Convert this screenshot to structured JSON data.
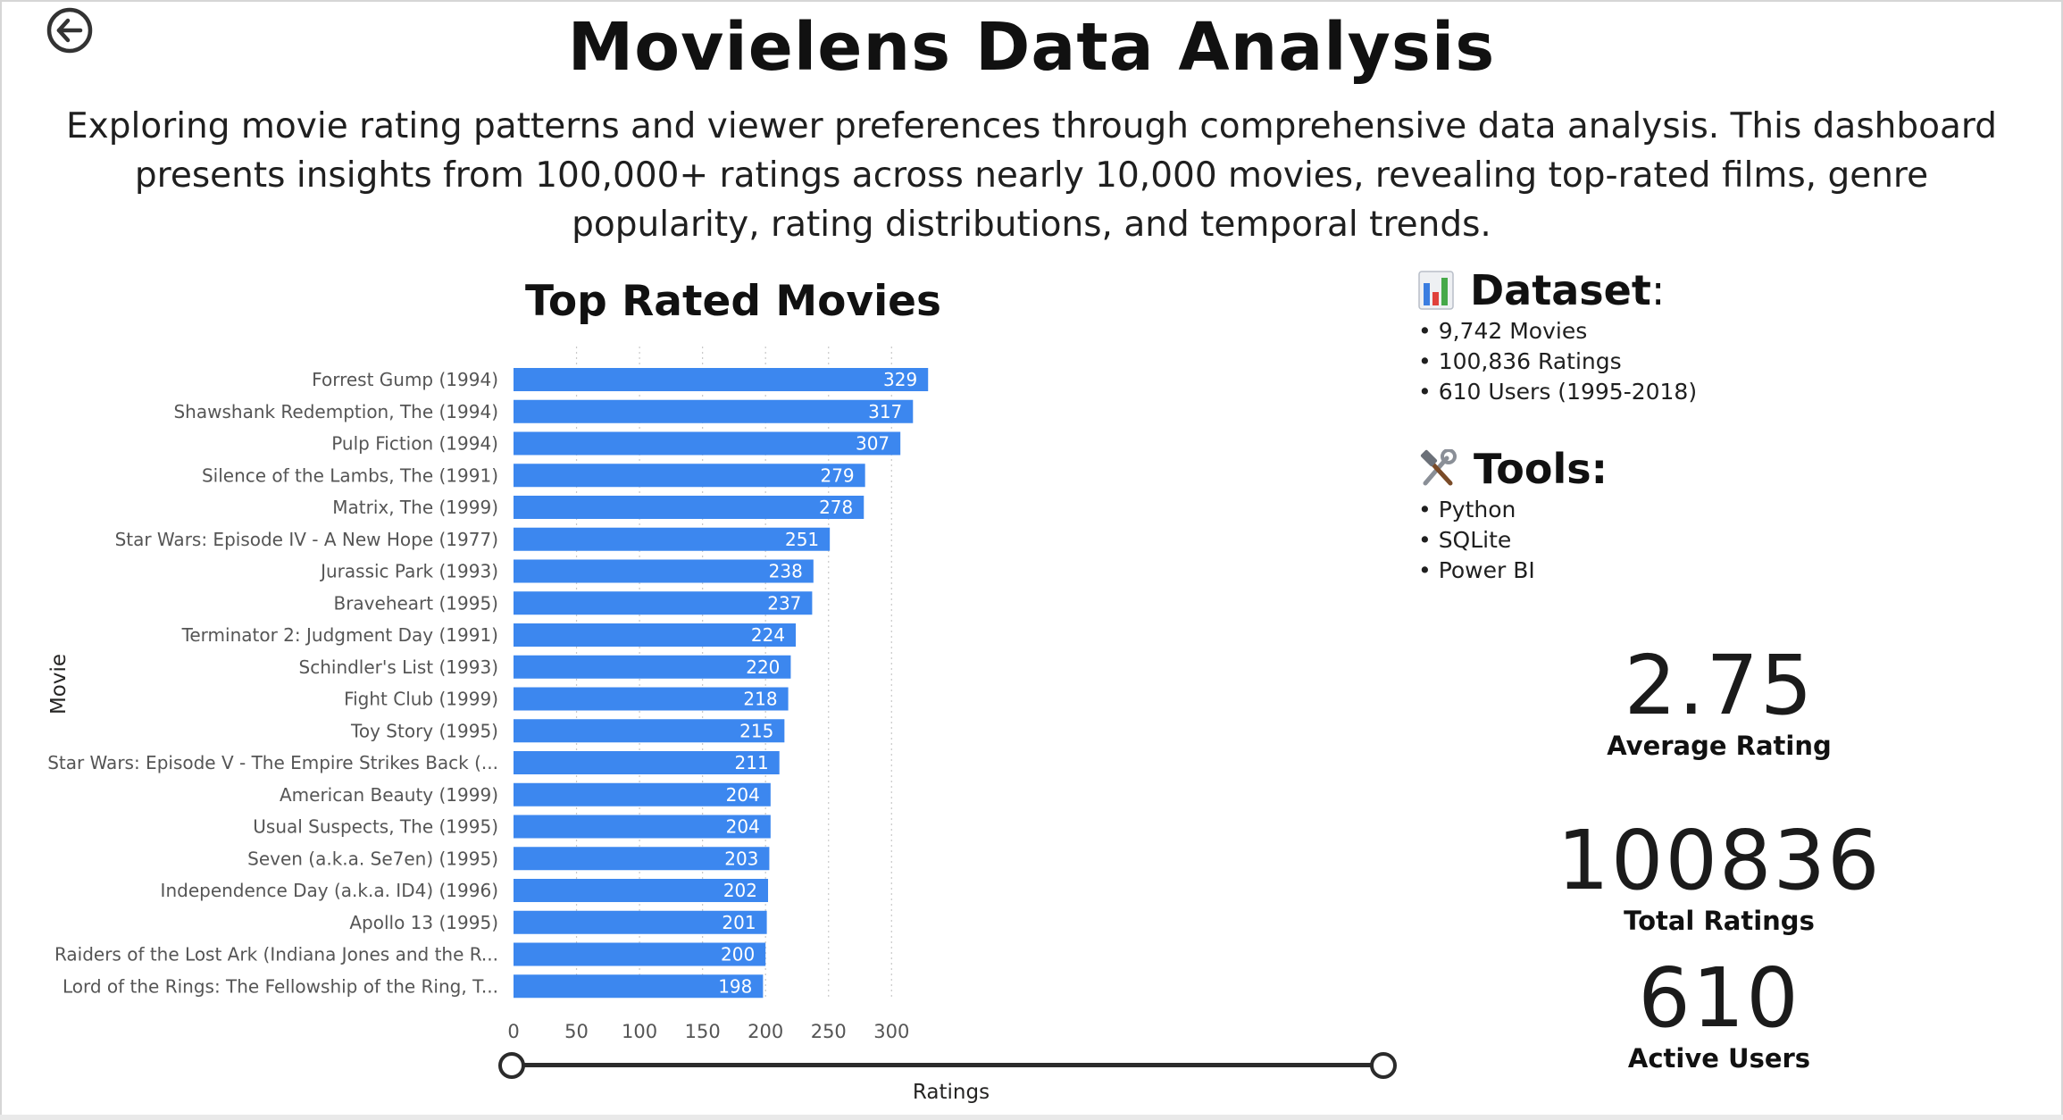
{
  "page": {
    "title": "Movielens Data Analysis",
    "subtitle": "Exploring movie rating patterns and viewer preferences through comprehensive data analysis. This dashboard presents insights from 100,000+ ratings across nearly 10,000 movies, revealing top-rated films, genre popularity, rating distributions, and temporal trends."
  },
  "nav": {
    "back_icon": "back-arrow-icon"
  },
  "chart_data": {
    "type": "bar",
    "orientation": "horizontal",
    "title": "Top Rated Movies",
    "xlabel": "Ratings",
    "ylabel": "Movie",
    "xlim": [
      0,
      340
    ],
    "xticks": [
      0,
      50,
      100,
      150,
      200,
      250,
      300
    ],
    "grid": "vertical dotted",
    "bar_color": "#3c87ef",
    "data_labels": true,
    "categories": [
      "Forrest Gump (1994)",
      "Shawshank Redemption, The (1994)",
      "Pulp Fiction (1994)",
      "Silence of the Lambs, The (1991)",
      "Matrix, The (1999)",
      "Star Wars: Episode IV - A New Hope (1977)",
      "Jurassic Park (1993)",
      "Braveheart (1995)",
      "Terminator 2: Judgment Day (1991)",
      "Schindler's List (1993)",
      "Fight Club (1999)",
      "Toy Story (1995)",
      "Star Wars: Episode V - The Empire Strikes Back (...",
      "American Beauty (1999)",
      "Usual Suspects, The (1995)",
      "Seven (a.k.a. Se7en) (1995)",
      "Independence Day (a.k.a. ID4) (1996)",
      "Apollo 13 (1995)",
      "Raiders of the Lost Ark (Indiana Jones and the R...",
      "Lord of the Rings: The Fellowship of the Ring, T..."
    ],
    "values": [
      329,
      317,
      307,
      279,
      278,
      251,
      238,
      237,
      224,
      220,
      218,
      215,
      211,
      204,
      204,
      203,
      202,
      201,
      200,
      198
    ]
  },
  "info": {
    "dataset": {
      "icon": "bar-chart-emoji-icon",
      "heading": "Dataset",
      "heading_suffix": ":",
      "items": [
        "• 9,742 Movies",
        "• 100,836 Ratings",
        "• 610 Users (1995-2018)"
      ]
    },
    "tools": {
      "icon": "hammer-wrench-emoji-icon",
      "heading": "Tools:",
      "items": [
        "• Python",
        "• SQLite",
        "• Power BI"
      ]
    }
  },
  "kpis": {
    "average_rating": {
      "value": "2.75",
      "label": "Average Rating"
    },
    "total_ratings": {
      "value": "100836",
      "label": "Total Ratings"
    },
    "active_users": {
      "value": "610",
      "label": "Active Users"
    }
  },
  "colors": {
    "bar": "#3c87ef",
    "slider": "#2b2b2b"
  }
}
